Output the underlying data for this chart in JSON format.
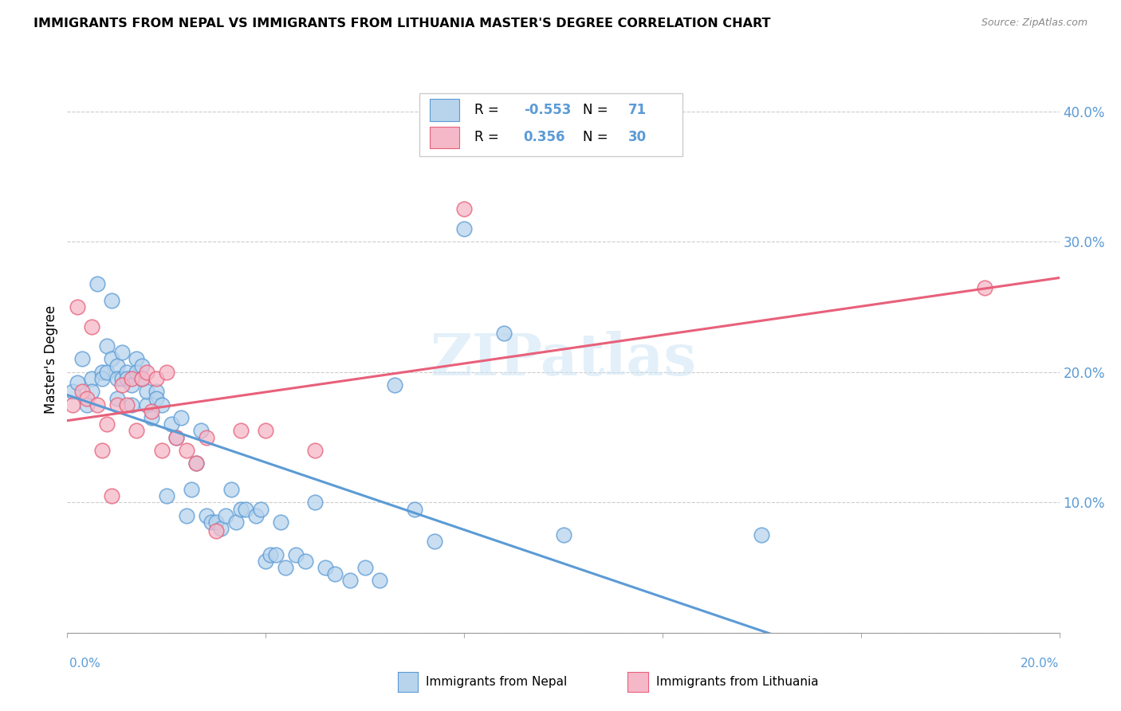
{
  "title": "IMMIGRANTS FROM NEPAL VS IMMIGRANTS FROM LITHUANIA MASTER'S DEGREE CORRELATION CHART",
  "source": "Source: ZipAtlas.com",
  "ylabel": "Master's Degree",
  "xlim": [
    0.0,
    0.2
  ],
  "ylim": [
    0.0,
    0.42
  ],
  "legend_R_nepal": "-0.553",
  "legend_N_nepal": "71",
  "legend_R_lithuania": "0.356",
  "legend_N_lithuania": "30",
  "color_nepal": "#b8d4ed",
  "color_lithuania": "#f5b8c8",
  "color_nepal_line": "#5b9bd5",
  "color_lithuania_line": "#e8607a",
  "nepal_x": [
    0.001,
    0.002,
    0.003,
    0.004,
    0.005,
    0.005,
    0.006,
    0.007,
    0.007,
    0.008,
    0.008,
    0.009,
    0.009,
    0.01,
    0.01,
    0.01,
    0.011,
    0.011,
    0.012,
    0.012,
    0.013,
    0.013,
    0.014,
    0.014,
    0.015,
    0.015,
    0.016,
    0.016,
    0.017,
    0.018,
    0.018,
    0.019,
    0.02,
    0.021,
    0.022,
    0.023,
    0.024,
    0.025,
    0.026,
    0.027,
    0.028,
    0.029,
    0.03,
    0.031,
    0.032,
    0.033,
    0.034,
    0.035,
    0.036,
    0.038,
    0.039,
    0.04,
    0.041,
    0.042,
    0.043,
    0.044,
    0.046,
    0.048,
    0.05,
    0.052,
    0.054,
    0.057,
    0.06,
    0.063,
    0.066,
    0.07,
    0.074,
    0.08,
    0.088,
    0.1,
    0.14
  ],
  "nepal_y": [
    0.185,
    0.192,
    0.21,
    0.175,
    0.195,
    0.185,
    0.268,
    0.2,
    0.195,
    0.22,
    0.2,
    0.255,
    0.21,
    0.205,
    0.195,
    0.18,
    0.215,
    0.195,
    0.2,
    0.195,
    0.19,
    0.175,
    0.21,
    0.2,
    0.205,
    0.195,
    0.175,
    0.185,
    0.165,
    0.185,
    0.18,
    0.175,
    0.105,
    0.16,
    0.15,
    0.165,
    0.09,
    0.11,
    0.13,
    0.155,
    0.09,
    0.085,
    0.085,
    0.08,
    0.09,
    0.11,
    0.085,
    0.095,
    0.095,
    0.09,
    0.095,
    0.055,
    0.06,
    0.06,
    0.085,
    0.05,
    0.06,
    0.055,
    0.1,
    0.05,
    0.045,
    0.04,
    0.05,
    0.04,
    0.19,
    0.095,
    0.07,
    0.31,
    0.23,
    0.075,
    0.075
  ],
  "lithuania_x": [
    0.001,
    0.002,
    0.003,
    0.004,
    0.005,
    0.006,
    0.007,
    0.008,
    0.009,
    0.01,
    0.011,
    0.012,
    0.013,
    0.014,
    0.015,
    0.016,
    0.017,
    0.018,
    0.019,
    0.02,
    0.022,
    0.024,
    0.026,
    0.028,
    0.03,
    0.035,
    0.04,
    0.05,
    0.08,
    0.185
  ],
  "lithuania_y": [
    0.175,
    0.25,
    0.185,
    0.18,
    0.235,
    0.175,
    0.14,
    0.16,
    0.105,
    0.175,
    0.19,
    0.175,
    0.195,
    0.155,
    0.195,
    0.2,
    0.17,
    0.195,
    0.14,
    0.2,
    0.15,
    0.14,
    0.13,
    0.15,
    0.078,
    0.155,
    0.155,
    0.14,
    0.325,
    0.265
  ],
  "xticks": [
    0.0,
    0.04,
    0.08,
    0.12,
    0.16,
    0.2
  ],
  "yticks": [
    0.0,
    0.1,
    0.2,
    0.3,
    0.4
  ],
  "ytick_labels": [
    "",
    "10.0%",
    "20.0%",
    "30.0%",
    "40.0%"
  ]
}
